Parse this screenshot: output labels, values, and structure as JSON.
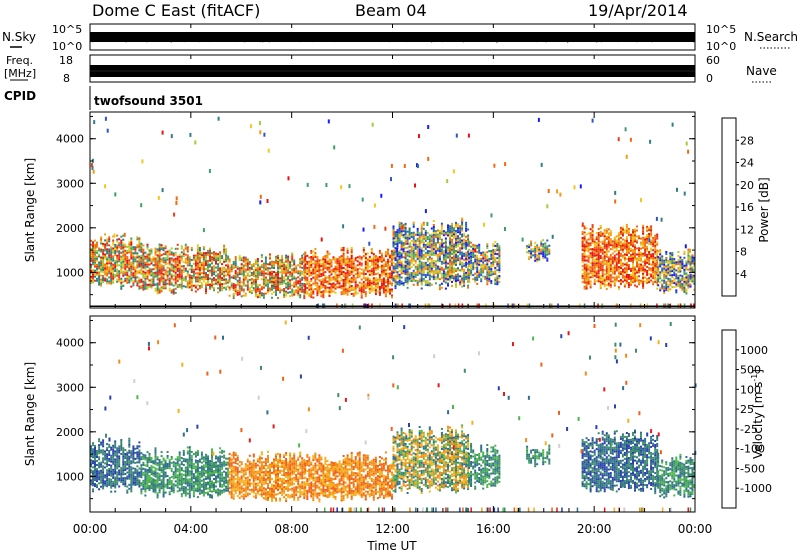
{
  "header": {
    "site": "Dome C East (fitACF)",
    "beam": "Beam 04",
    "date": "19/Apr/2014"
  },
  "strips": {
    "nsky": {
      "label": "N.Sky",
      "tick_top": "10^5",
      "tick_bottom": "10^0"
    },
    "nsearch": {
      "label": "N.Search",
      "tick_top": "10^5",
      "tick_bottom": "10^0"
    },
    "freq": {
      "label_line1": "Freq.",
      "label_line2": "[MHz]",
      "tick_top": "18",
      "tick_bottom": "8"
    },
    "nave": {
      "label": "Nave",
      "tick_top": "60",
      "tick_bottom": "0"
    },
    "cpid": {
      "label": "CPID",
      "program": "twofsound 3501"
    }
  },
  "chart_data": [
    {
      "type": "heatmap",
      "panel": "power",
      "xlabel": "",
      "ylabel": "Slant Range [km]",
      "xlim": [
        0,
        24
      ],
      "ylim": [
        200,
        4600
      ],
      "yticks": [
        "1000",
        "2000",
        "3000",
        "4000"
      ],
      "colorbar": {
        "label": "Power [dB]",
        "ticks": [
          "4",
          "8",
          "12",
          "16",
          "20",
          "24",
          "28"
        ],
        "colors": [
          "#1a1aff",
          "#2b55c8",
          "#2f7d86",
          "#3f9e68",
          "#9fcc3a",
          "#f0c81a",
          "#f39a12",
          "#f06a10",
          "#ee3a12",
          "#e81010"
        ]
      },
      "scatter_blocks": [
        {
          "t0": 0.0,
          "t1": 2.0,
          "r0": 700,
          "r1": 1700,
          "level": "mixed-high"
        },
        {
          "t0": 2.0,
          "t1": 5.5,
          "r0": 600,
          "r1": 1500,
          "level": "mixed-high"
        },
        {
          "t0": 5.5,
          "t1": 8.5,
          "r0": 500,
          "r1": 1300,
          "level": "mixed-high"
        },
        {
          "t0": 8.5,
          "t1": 12.0,
          "r0": 500,
          "r1": 1400,
          "level": "high"
        },
        {
          "t0": 12.0,
          "t1": 15.0,
          "r0": 700,
          "r1": 2000,
          "level": "mixed"
        },
        {
          "t0": 15.0,
          "t1": 16.2,
          "r0": 800,
          "r1": 1600,
          "level": "mixed"
        },
        {
          "t0": 17.3,
          "t1": 18.2,
          "r0": 1300,
          "r1": 1600,
          "level": "mixed"
        },
        {
          "t0": 19.5,
          "t1": 22.5,
          "r0": 700,
          "r1": 1900,
          "level": "high"
        },
        {
          "t0": 22.5,
          "t1": 24.0,
          "r0": 600,
          "r1": 1400,
          "level": "mixed"
        }
      ]
    },
    {
      "type": "heatmap",
      "panel": "velocity",
      "xlabel": "Time UT",
      "ylabel": "Slant Range [km]",
      "xlim": [
        0,
        24
      ],
      "ylim": [
        200,
        4600
      ],
      "xticks": [
        "00:00",
        "04:00",
        "08:00",
        "12:00",
        "16:00",
        "20:00",
        "00:00"
      ],
      "yticks": [
        "1000",
        "2000",
        "3000",
        "4000"
      ],
      "colorbar": {
        "label": "Velocity [m s^-1]",
        "ticks": [
          "1000",
          "500",
          "100",
          "25",
          "-25",
          "-100",
          "-500",
          "-1000"
        ],
        "colors": [
          "#2a3fb0",
          "#2f6e8e",
          "#3d8f68",
          "#4cb84c",
          "#cfd0cf",
          "#f4b11c",
          "#f38a16",
          "#f0601a",
          "#e81818"
        ]
      },
      "scatter_blocks": [
        {
          "t0": 0.0,
          "t1": 2.0,
          "r0": 700,
          "r1": 1700,
          "level": "green-blue"
        },
        {
          "t0": 2.0,
          "t1": 5.5,
          "r0": 600,
          "r1": 1500,
          "level": "green"
        },
        {
          "t0": 5.5,
          "t1": 8.5,
          "r0": 500,
          "r1": 1400,
          "level": "orange"
        },
        {
          "t0": 8.5,
          "t1": 12.0,
          "r0": 500,
          "r1": 1400,
          "level": "orange"
        },
        {
          "t0": 12.0,
          "t1": 15.0,
          "r0": 700,
          "r1": 2000,
          "level": "orange-green"
        },
        {
          "t0": 15.0,
          "t1": 16.2,
          "r0": 800,
          "r1": 1600,
          "level": "green"
        },
        {
          "t0": 17.3,
          "t1": 18.2,
          "r0": 1300,
          "r1": 1600,
          "level": "green"
        },
        {
          "t0": 19.5,
          "t1": 22.5,
          "r0": 700,
          "r1": 1900,
          "level": "green-blue"
        },
        {
          "t0": 22.5,
          "t1": 24.0,
          "r0": 600,
          "r1": 1400,
          "level": "green"
        }
      ]
    }
  ]
}
